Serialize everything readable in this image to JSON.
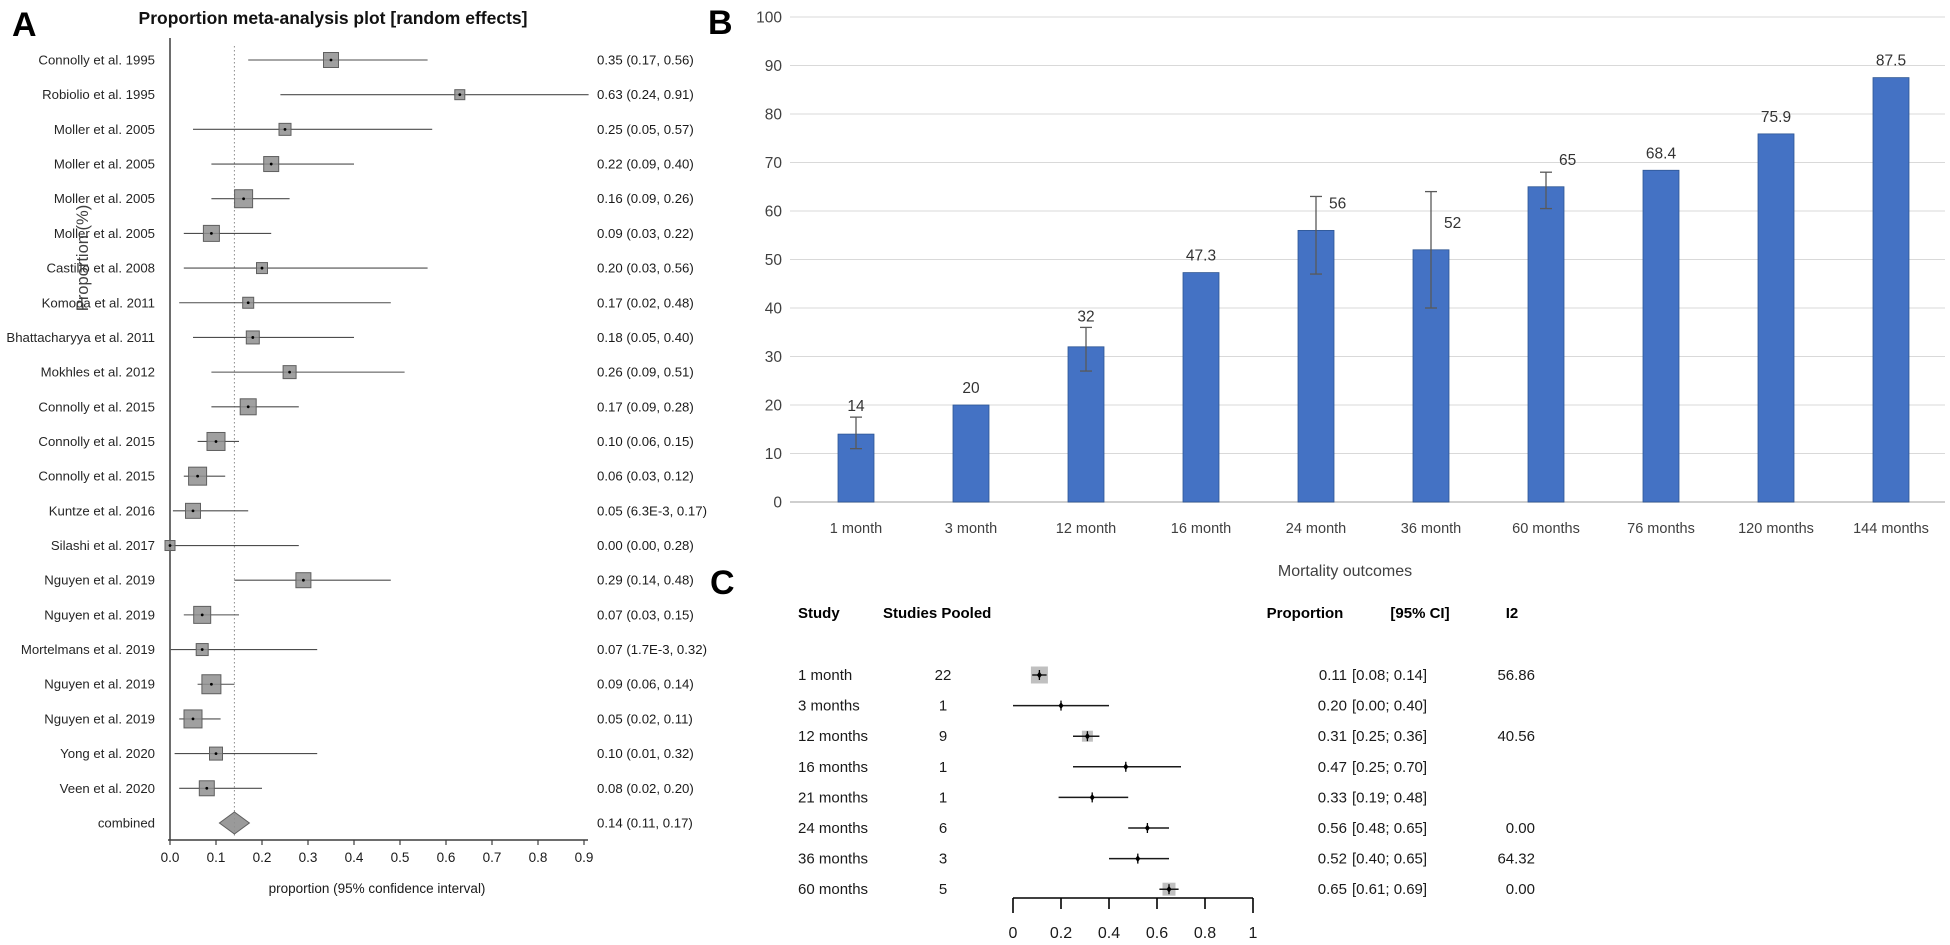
{
  "figure": {
    "panel_a_letter": "A",
    "panel_b_letter": "B",
    "panel_c_letter": "C"
  },
  "colors": {
    "bar": "#4472c4",
    "bar_border": "#2e5693",
    "marker_grey": "#8f8f8f",
    "marker_border": "#5f5f5f",
    "grid": "#d9d9d9",
    "baseline": "#bfbfbf",
    "ci_line": "#4d4d4d",
    "ref_line": "#8c8c8c",
    "text_dark": "#1a1a1a",
    "text_grey": "#404040"
  },
  "chart_data": [
    {
      "id": "panel-a-forest",
      "type": "scatter",
      "subtype": "forest",
      "title": "Proportion meta-analysis plot [random effects]",
      "xlabel": "proportion (95% confidence interval)",
      "xlim": [
        0,
        0.9
      ],
      "x_ticks": [
        0.0,
        0.1,
        0.2,
        0.3,
        0.4,
        0.5,
        0.6,
        0.7,
        0.8,
        0.9
      ],
      "x_tick_labels": [
        "0.0",
        "0.1",
        "0.2",
        "0.3",
        "0.4",
        "0.5",
        "0.6",
        "0.7",
        "0.8",
        "0.9"
      ],
      "reference_line": 0.14,
      "studies": [
        {
          "label": "Connolly et al. 1995",
          "value": 0.35,
          "ci": [
            0.17,
            0.56
          ],
          "text": "0.35 (0.17, 0.56)",
          "size": 15
        },
        {
          "label": "Robiolio et al. 1995",
          "value": 0.63,
          "ci": [
            0.24,
            0.91
          ],
          "text": "0.63 (0.24, 0.91)",
          "size": 10
        },
        {
          "label": "Moller et al. 2005",
          "value": 0.25,
          "ci": [
            0.05,
            0.57
          ],
          "text": "0.25 (0.05, 0.57)",
          "size": 12
        },
        {
          "label": "Moller et al. 2005",
          "value": 0.22,
          "ci": [
            0.09,
            0.4
          ],
          "text": "0.22 (0.09, 0.40)",
          "size": 15
        },
        {
          "label": "Moller et al. 2005",
          "value": 0.16,
          "ci": [
            0.09,
            0.26
          ],
          "text": "0.16 (0.09, 0.26)",
          "size": 18
        },
        {
          "label": "Moller et al. 2005",
          "value": 0.09,
          "ci": [
            0.03,
            0.22
          ],
          "text": "0.09 (0.03, 0.22)",
          "size": 16
        },
        {
          "label": "Castillo et al. 2008",
          "value": 0.2,
          "ci": [
            0.03,
            0.56
          ],
          "text": "0.20 (0.03, 0.56)",
          "size": 11
        },
        {
          "label": "Komoda et al. 2011",
          "value": 0.17,
          "ci": [
            0.02,
            0.48
          ],
          "text": "0.17 (0.02, 0.48)",
          "size": 11
        },
        {
          "label": "Bhattacharyya et al. 2011",
          "value": 0.18,
          "ci": [
            0.05,
            0.4
          ],
          "text": "0.18 (0.05, 0.40)",
          "size": 13
        },
        {
          "label": "Mokhles et al. 2012",
          "value": 0.26,
          "ci": [
            0.09,
            0.51
          ],
          "text": "0.26 (0.09, 0.51)",
          "size": 13
        },
        {
          "label": "Connolly et al. 2015",
          "value": 0.17,
          "ci": [
            0.09,
            0.28
          ],
          "text": "0.17 (0.09, 0.28)",
          "size": 16
        },
        {
          "label": "Connolly et al. 2015",
          "value": 0.1,
          "ci": [
            0.06,
            0.15
          ],
          "text": "0.10 (0.06, 0.15)",
          "size": 18
        },
        {
          "label": "Connolly et al. 2015",
          "value": 0.06,
          "ci": [
            0.03,
            0.12
          ],
          "text": "0.06 (0.03, 0.12)",
          "size": 18
        },
        {
          "label": "Kuntze et al. 2016",
          "value": 0.05,
          "ci": [
            0.0063,
            0.17
          ],
          "text": "0.05 (6.3E-3, 0.17)",
          "size": 15
        },
        {
          "label": "Silashi et al. 2017",
          "value": 0.0,
          "ci": [
            0.0,
            0.28
          ],
          "text": "0.00 (0.00, 0.28)",
          "size": 10
        },
        {
          "label": "Nguyen et al. 2019",
          "value": 0.29,
          "ci": [
            0.14,
            0.48
          ],
          "text": "0.29 (0.14, 0.48)",
          "size": 15
        },
        {
          "label": "Nguyen et al. 2019",
          "value": 0.07,
          "ci": [
            0.03,
            0.15
          ],
          "text": "0.07 (0.03, 0.15)",
          "size": 17
        },
        {
          "label": "Mortelmans et al. 2019",
          "value": 0.07,
          "ci": [
            0.0017,
            0.32
          ],
          "text": "0.07 (1.7E-3, 0.32)",
          "size": 12
        },
        {
          "label": "Nguyen et al. 2019",
          "value": 0.09,
          "ci": [
            0.06,
            0.14
          ],
          "text": "0.09 (0.06, 0.14)",
          "size": 19
        },
        {
          "label": "Nguyen et al. 2019",
          "value": 0.05,
          "ci": [
            0.02,
            0.11
          ],
          "text": "0.05 (0.02, 0.11)",
          "size": 18
        },
        {
          "label": "Yong et al. 2020",
          "value": 0.1,
          "ci": [
            0.01,
            0.32
          ],
          "text": "0.10 (0.01, 0.32)",
          "size": 13
        },
        {
          "label": "Veen et al. 2020",
          "value": 0.08,
          "ci": [
            0.02,
            0.2
          ],
          "text": "0.08 (0.02, 0.20)",
          "size": 15
        }
      ],
      "combined": {
        "label": "combined",
        "value": 0.14,
        "ci": [
          0.11,
          0.17
        ],
        "text": "0.14 (0.11, 0.17)"
      }
    },
    {
      "id": "panel-b-bars",
      "type": "bar",
      "categories": [
        "1 month",
        "3 month",
        "12 month",
        "16 month",
        "24 month",
        "36 month",
        "60 months",
        "76 months",
        "120 months",
        "144 months"
      ],
      "values": [
        14,
        20,
        32,
        47.3,
        56,
        52,
        65,
        68.4,
        75.9,
        87.5
      ],
      "labels": [
        "14",
        "20",
        "32",
        "47.3",
        "56",
        "52",
        "65",
        "68.4",
        "75.9",
        "87.5"
      ],
      "error_low": [
        11,
        null,
        27,
        null,
        47,
        40,
        60.5,
        null,
        null,
        null
      ],
      "error_high": [
        17.5,
        null,
        36,
        null,
        63,
        64,
        68,
        null,
        null,
        null
      ],
      "label_side": [
        false,
        false,
        false,
        false,
        true,
        true,
        true,
        false,
        false,
        false
      ],
      "ylabel": "Proportion (%)",
      "xlabel": "Mortality outcomes",
      "ylim": [
        0,
        100
      ],
      "y_ticks": [
        0,
        10,
        20,
        30,
        40,
        50,
        60,
        70,
        80,
        90,
        100
      ],
      "grid": true,
      "legend": false
    },
    {
      "id": "panel-c-forest-table",
      "type": "table",
      "subtype": "forest-table",
      "columns": [
        "Study",
        "Studies Pooled",
        "Proportion",
        "[95% CI]",
        "I2"
      ],
      "xlim": [
        0,
        1
      ],
      "x_ticks": [
        0,
        0.2,
        0.4,
        0.6,
        0.8,
        1
      ],
      "x_tick_labels": [
        "0",
        "0.2",
        "0.4",
        "0.6",
        "0.8",
        "1"
      ],
      "rows": [
        {
          "study": "1 month",
          "pooled": "22",
          "value": 0.11,
          "ci": [
            0.08,
            0.14
          ],
          "proportion": "0.11",
          "ci_text": "[0.08; 0.14]",
          "i2": "56.86",
          "pooled_marker": true,
          "marker_size": 17
        },
        {
          "study": "3 months",
          "pooled": "1",
          "value": 0.2,
          "ci": [
            0.0,
            0.4
          ],
          "proportion": "0.20",
          "ci_text": "[0.00; 0.40]",
          "i2": "",
          "pooled_marker": false,
          "marker_size": 0
        },
        {
          "study": "12 months",
          "pooled": "9",
          "value": 0.31,
          "ci": [
            0.25,
            0.36
          ],
          "proportion": "0.31",
          "ci_text": "[0.25; 0.36]",
          "i2": "40.56",
          "pooled_marker": true,
          "marker_size": 11
        },
        {
          "study": "16 months",
          "pooled": "1",
          "value": 0.47,
          "ci": [
            0.25,
            0.7
          ],
          "proportion": "0.47",
          "ci_text": "[0.25; 0.70]",
          "i2": "",
          "pooled_marker": false,
          "marker_size": 0
        },
        {
          "study": "21 months",
          "pooled": "1",
          "value": 0.33,
          "ci": [
            0.19,
            0.48
          ],
          "proportion": "0.33",
          "ci_text": "[0.19; 0.48]",
          "i2": "",
          "pooled_marker": false,
          "marker_size": 0
        },
        {
          "study": "24 months",
          "pooled": "6",
          "value": 0.56,
          "ci": [
            0.48,
            0.65
          ],
          "proportion": "0.56",
          "ci_text": "[0.48; 0.65]",
          "i2": "0.00",
          "pooled_marker": false,
          "marker_size": 0
        },
        {
          "study": "36 months",
          "pooled": "3",
          "value": 0.52,
          "ci": [
            0.4,
            0.65
          ],
          "proportion": "0.52",
          "ci_text": "[0.40; 0.65]",
          "i2": "64.32",
          "pooled_marker": false,
          "marker_size": 0
        },
        {
          "study": "60 months",
          "pooled": "5",
          "value": 0.65,
          "ci": [
            0.61,
            0.69
          ],
          "proportion": "0.65",
          "ci_text": "[0.61; 0.69]",
          "i2": "0.00",
          "pooled_marker": true,
          "marker_size": 13
        }
      ]
    }
  ]
}
